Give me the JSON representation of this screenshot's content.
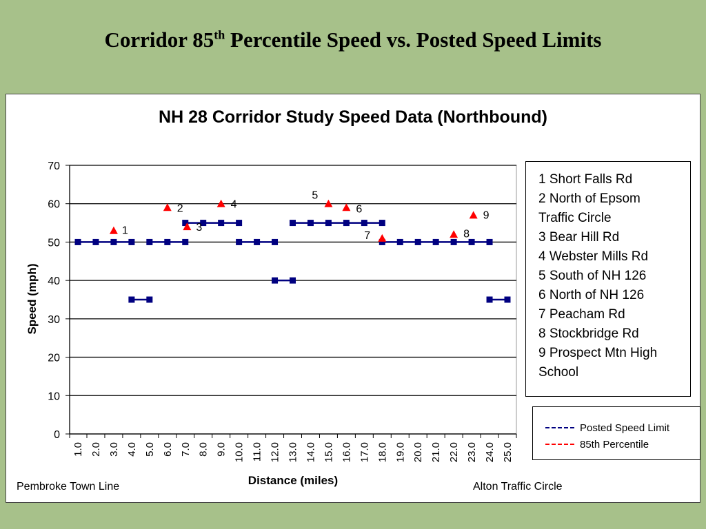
{
  "slide_title": {
    "prefix": "Corridor 85",
    "sup": "th",
    "suffix": " Percentile Speed vs. Posted Speed Limits"
  },
  "footer": {
    "left": "Pembroke Town Line",
    "right": "Alton Traffic Circle"
  },
  "locations": [
    "1 Short Falls Rd",
    "2 North of Epsom Traffic Circle",
    "3 Bear Hill Rd",
    "4 Webster Mills Rd",
    "5 South of NH 126",
    "6 North of NH 126",
    "7 Peacham Rd",
    "8 Stockbridge Rd",
    "9 Prospect Mtn High School"
  ],
  "colors": {
    "posted": "#000080",
    "percentile": "#ff0000",
    "background": "#a7c18a"
  },
  "chart_data": {
    "type": "line",
    "title": "NH 28 Corridor Study Speed Data (Northbound)",
    "xlabel": "Distance (miles)",
    "ylabel": "Speed (mph)",
    "xlim": [
      1,
      25
    ],
    "ylim": [
      0,
      70
    ],
    "x_ticks": [
      "1.0",
      "2.0",
      "3.0",
      "4.0",
      "5.0",
      "6.0",
      "7.0",
      "8.0",
      "9.0",
      "10.0",
      "11.0",
      "12.0",
      "13.0",
      "14.0",
      "15.0",
      "16.0",
      "17.0",
      "18.0",
      "19.0",
      "20.0",
      "21.0",
      "22.0",
      "23.0",
      "24.0",
      "25.0"
    ],
    "y_ticks": [
      "0",
      "10",
      "20",
      "30",
      "40",
      "50",
      "60",
      "70"
    ],
    "grid": true,
    "legend_position": "right",
    "series": [
      {
        "name": "Posted Speed Limit",
        "segments": [
          [
            [
              1,
              50
            ],
            [
              2,
              50
            ],
            [
              3,
              50
            ],
            [
              4,
              50
            ]
          ],
          [
            [
              4,
              35
            ],
            [
              5,
              35
            ]
          ],
          [
            [
              5,
              50
            ],
            [
              6,
              50
            ],
            [
              7,
              50
            ]
          ],
          [
            [
              7,
              55
            ],
            [
              8,
              55
            ],
            [
              9,
              55
            ],
            [
              10,
              55
            ]
          ],
          [
            [
              10,
              50
            ],
            [
              11,
              50
            ],
            [
              12,
              50
            ]
          ],
          [
            [
              12,
              40
            ],
            [
              13,
              40
            ]
          ],
          [
            [
              13,
              55
            ],
            [
              14,
              55
            ],
            [
              15,
              55
            ],
            [
              16,
              55
            ],
            [
              17,
              55
            ],
            [
              18,
              55
            ]
          ],
          [
            [
              18,
              50
            ],
            [
              19,
              50
            ],
            [
              20,
              50
            ],
            [
              21,
              50
            ],
            [
              22,
              50
            ],
            [
              23,
              50
            ],
            [
              24,
              50
            ]
          ],
          [
            [
              24,
              35
            ],
            [
              25,
              35
            ]
          ]
        ]
      },
      {
        "name": "85th Percentile",
        "points": [
          {
            "x": 3.0,
            "y": 53,
            "label": "1"
          },
          {
            "x": 6.0,
            "y": 59,
            "label": "2"
          },
          {
            "x": 7.1,
            "y": 54,
            "label": "3"
          },
          {
            "x": 9.0,
            "y": 60,
            "label": "4"
          },
          {
            "x": 15.0,
            "y": 60,
            "label": "5"
          },
          {
            "x": 16.0,
            "y": 59,
            "label": "6"
          },
          {
            "x": 18.0,
            "y": 51,
            "label": "7"
          },
          {
            "x": 22.0,
            "y": 52,
            "label": "8"
          },
          {
            "x": 23.1,
            "y": 57,
            "label": "9"
          }
        ]
      }
    ]
  }
}
